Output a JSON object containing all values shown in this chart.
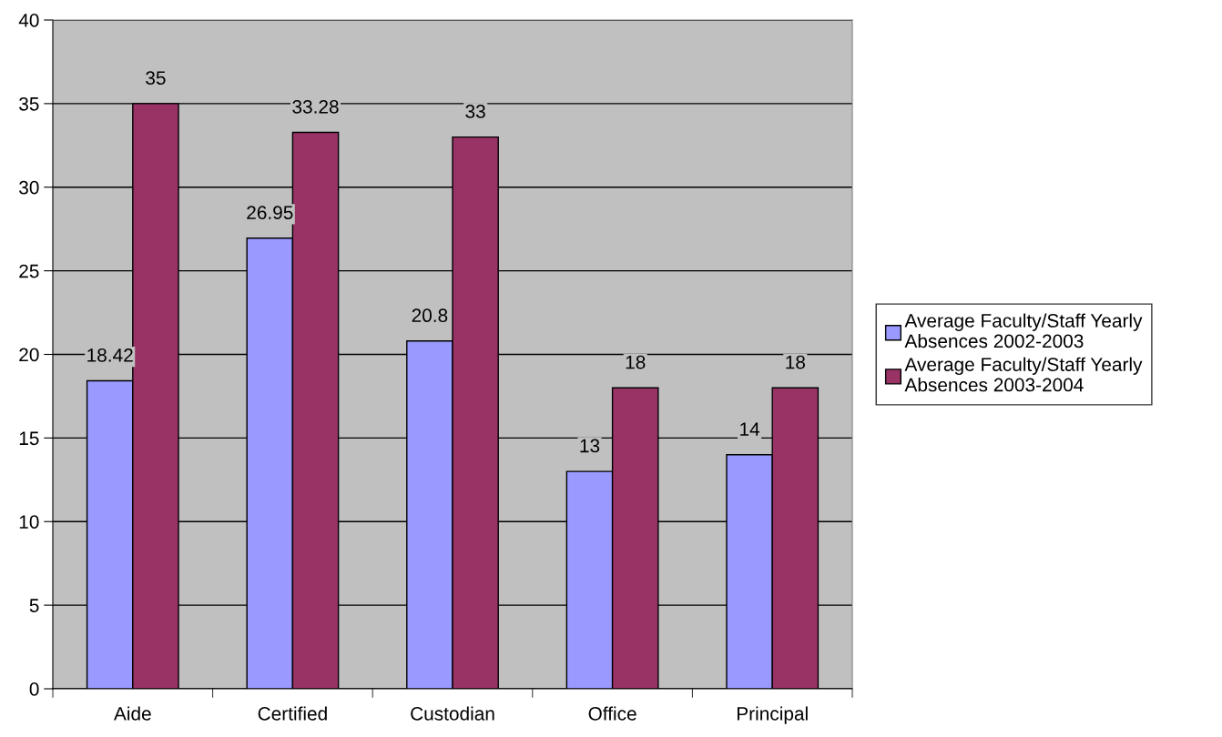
{
  "chart_data": {
    "type": "bar",
    "categories": [
      "Aide",
      "Certified",
      "Custodian",
      "Office",
      "Principal"
    ],
    "series": [
      {
        "name": "Average Faculty/Staff Yearly Absences 2002-2003",
        "color": "#9999ff",
        "values": [
          18.42,
          26.95,
          20.8,
          13,
          14
        ]
      },
      {
        "name": "Average Faculty/Staff Yearly Absences 2003-2004",
        "color": "#993366",
        "values": [
          35,
          33.28,
          33,
          18,
          18
        ]
      }
    ],
    "ylim": [
      0,
      40
    ],
    "yticks": [
      0,
      5,
      10,
      15,
      20,
      25,
      30,
      35,
      40
    ],
    "grid": "y",
    "legend": "right",
    "data_labels": true
  }
}
